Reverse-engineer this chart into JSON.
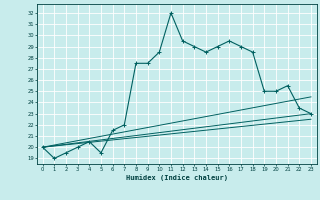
{
  "xlabel": "Humidex (Indice chaleur)",
  "bg_color": "#c8ecec",
  "grid_color": "#ffffff",
  "line_color": "#006060",
  "xlim": [
    -0.5,
    23.5
  ],
  "ylim": [
    18.5,
    32.8
  ],
  "yticks": [
    19,
    20,
    21,
    22,
    23,
    24,
    25,
    26,
    27,
    28,
    29,
    30,
    31,
    32
  ],
  "xticks": [
    0,
    1,
    2,
    3,
    4,
    5,
    6,
    7,
    8,
    9,
    10,
    11,
    12,
    13,
    14,
    15,
    16,
    17,
    18,
    19,
    20,
    21,
    22,
    23
  ],
  "main_x": [
    0,
    1,
    2,
    3,
    4,
    5,
    6,
    7,
    8,
    9,
    10,
    11,
    12,
    13,
    14,
    15,
    16,
    17,
    18,
    19,
    20,
    21,
    22,
    23
  ],
  "main_y": [
    20.0,
    19.0,
    19.5,
    20.0,
    20.5,
    19.5,
    21.5,
    22.0,
    27.5,
    27.5,
    28.5,
    32.0,
    29.5,
    29.0,
    28.5,
    29.0,
    29.5,
    29.0,
    28.5,
    25.0,
    25.0,
    25.5,
    23.5,
    23.0
  ],
  "line2_x": [
    0,
    23
  ],
  "line2_y": [
    20.0,
    23.0
  ],
  "line3_x": [
    0,
    23
  ],
  "line3_y": [
    20.0,
    22.5
  ],
  "line4_x": [
    0,
    23
  ],
  "line4_y": [
    20.0,
    24.5
  ]
}
